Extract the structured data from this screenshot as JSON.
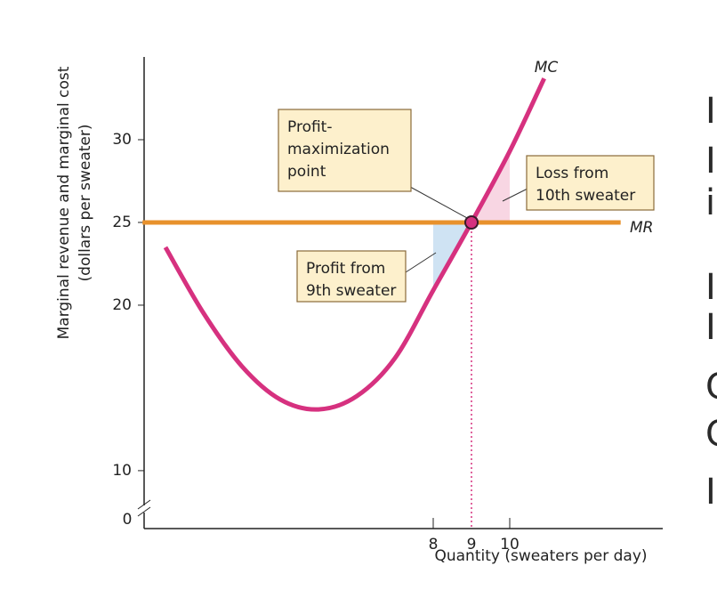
{
  "chart_data": {
    "type": "line",
    "y_title": [
      "Marginal revenue and marginal cost",
      "(dollars per sweater)"
    ],
    "x_title": "Quantity (sweaters per day)",
    "xlim": [
      0,
      14
    ],
    "ylim": [
      6.5,
      35
    ],
    "xticks": [
      0,
      8,
      9,
      10
    ],
    "yticks": [
      10,
      20,
      25,
      30
    ],
    "highlight": {
      "x": 9,
      "y": 25
    },
    "series": [
      {
        "name": "MC",
        "color": "#d6317f",
        "x": [
          1,
          2,
          3,
          4,
          5,
          6,
          7,
          8,
          9,
          10,
          10.9
        ],
        "values": [
          23.5,
          19.5,
          16.3,
          14.3,
          13.7,
          14.5,
          16.8,
          20.9,
          25,
          29.3,
          33.7
        ]
      },
      {
        "name": "MR",
        "color": "#e8912c",
        "x": [
          0.4,
          12.9
        ],
        "values": [
          25,
          25
        ]
      }
    ],
    "shaded_regions": [
      {
        "x": [
          8,
          9
        ],
        "color": "#cfe3f3"
      },
      {
        "x": [
          9,
          10
        ],
        "color": "#f8d6e3"
      }
    ],
    "point": {
      "x": 9,
      "y": 25
    },
    "annotations": [
      {
        "lines": [
          "Profit-",
          "maximization",
          "point"
        ]
      },
      {
        "lines": [
          "Loss from",
          "10th sweater"
        ]
      },
      {
        "lines": [
          "Profit from",
          "9th sweater"
        ]
      }
    ],
    "side_text": [
      "I",
      "I",
      "i",
      "I",
      "I",
      "C",
      "C",
      "I"
    ]
  }
}
